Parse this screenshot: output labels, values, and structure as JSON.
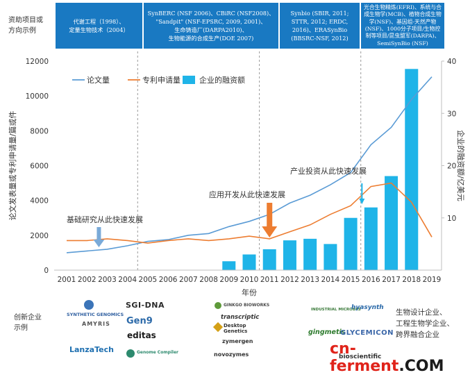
{
  "funding": {
    "side_label_lines": [
      "资助项目或",
      "方向示例"
    ],
    "boxes": [
      {
        "lines": [
          "代谢工程（1998）、",
          "定量生物技术（2004）"
        ]
      },
      {
        "lines": [
          "SynBERC (NSF 2006)、CBiRC (NSF2008)、",
          "\"Sandpit\" (NSF-EPSRC, 2009, 2001)、",
          "生命铸造厂(DARPA2010)、",
          "生物能源的合成生产(DOE 2007)"
        ]
      },
      {
        "lines": [
          "Synbio (SBIR, 2011;",
          "STTR, 2012; ERDC,",
          "2016)、ERASynBio",
          "(BBSRC-NSF, 2012)"
        ]
      },
      {
        "lines": [
          "光合生物精炼(EFRI)、系统与合",
          "成生物学(MCB)、植物合成生物",
          "学(NSF)、基因组-天然产物",
          "(NSF)、1000分子项目/生物控",
          "制等项目/昆虫盟军(DARPA)、",
          "SemiSynBio (NSF)"
        ]
      }
    ]
  },
  "chart_data": {
    "type": "bar+line",
    "title": "",
    "xlabel": "年份",
    "ylabel_left": "论文发表量或专利申请量/篇或件",
    "ylabel_right": "企业的融资额/亿美元",
    "ylim_left": [
      0,
      12000
    ],
    "ylim_right": [
      0,
      40
    ],
    "yticks_left": [
      "0",
      "2000",
      "4000",
      "6000",
      "8000",
      "10000",
      "12000"
    ],
    "yticks_right": [
      "10",
      "20",
      "30",
      "40"
    ],
    "x": [
      "2001",
      "2002",
      "2003",
      "2004",
      "2005",
      "2006",
      "2007",
      "2008",
      "2009",
      "2010",
      "2011",
      "2012",
      "2013",
      "2014",
      "2015",
      "2016",
      "2017",
      "2018",
      "2019"
    ],
    "legend": [
      "论文量",
      "专利申请量",
      "企业的融资额"
    ],
    "series": [
      {
        "name": "论文量",
        "kind": "line",
        "axis": "left",
        "color": "#5a9bd5",
        "values": [
          1000,
          1100,
          1200,
          1400,
          1650,
          1750,
          2000,
          2100,
          2500,
          2800,
          3200,
          3850,
          4300,
          4900,
          5600,
          7200,
          8200,
          9800,
          11100
        ]
      },
      {
        "name": "专利申请量",
        "kind": "line",
        "axis": "left",
        "color": "#ed7d31",
        "values": [
          1700,
          1700,
          1800,
          1700,
          1550,
          1700,
          1800,
          1700,
          1800,
          1950,
          1800,
          2200,
          2600,
          3200,
          3700,
          4800,
          5000,
          3900,
          1900
        ]
      },
      {
        "name": "企业的融资额",
        "kind": "bar",
        "axis": "right",
        "color": "#1fb4e8",
        "values": [
          null,
          null,
          null,
          null,
          null,
          null,
          null,
          null,
          1.7,
          3.0,
          4.0,
          5.7,
          6.0,
          5.0,
          10.0,
          12.0,
          18.0,
          38.5,
          null
        ]
      }
    ],
    "annotations": [
      {
        "text": "基础研究从此快速发展",
        "year": "2003",
        "arrow_color": "#7aaad8"
      },
      {
        "text": "应用开发从此快速发展",
        "year": "2011",
        "arrow_color": "#ed7d31"
      },
      {
        "text": "产业投资从此快速发展",
        "year": "2016",
        "arrow_color": "#1fb4e8"
      }
    ],
    "dashed_dividers_after_year": [
      "2004",
      "2010",
      "2015"
    ]
  },
  "companies": {
    "side_label_lines": [
      "创新企业",
      "示例"
    ],
    "group1": [
      "SYNTHETIC GENOMICS",
      "AMYRIS",
      "SGI-DNA",
      "Gen9",
      "editas",
      "LanzaTech",
      "Genome Compiler"
    ],
    "group2": [
      "GINKGO BIOWORKS",
      "transcriptic",
      "Desktop Genetics",
      "zymergen",
      "novozymes"
    ],
    "group3": [
      "INDUSTRIAL MICROBES",
      "hyasynth",
      "gingmetis",
      "GLYCEMICON",
      "bioscientific"
    ],
    "types": [
      "生物设计企业、",
      "工程生物学企业、",
      "跨界融合企业"
    ]
  },
  "watermark": {
    "part1": "cn-",
    "part2": "ferment",
    "part3": ".COM"
  }
}
